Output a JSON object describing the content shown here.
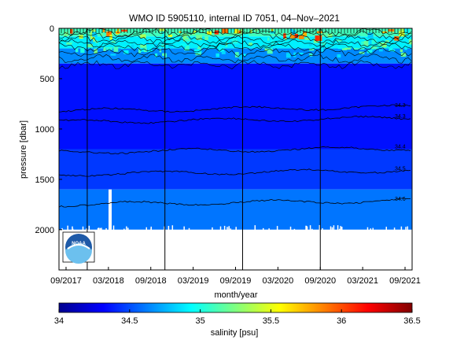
{
  "chart_data": {
    "type": "heatmap",
    "title": "WMO ID 5905110, internal ID 7051, 04–Nov–2021",
    "xlabel": "month/year",
    "ylabel": "pressure [dbar]",
    "x_tick_labels": [
      "09/2017",
      "03/2018",
      "09/2018",
      "03/2019",
      "09/2019",
      "03/2020",
      "09/2020",
      "03/2021",
      "09/2021"
    ],
    "x_range": [
      "2017-08",
      "2021-10"
    ],
    "y_ticks": [
      0,
      500,
      1000,
      1500,
      2000
    ],
    "y_tick_labels": [
      "0",
      "500",
      "1000",
      "1500",
      "2000"
    ],
    "ylim": [
      0,
      2400
    ],
    "y_reversed": true,
    "vertical_markers": [
      "2017-12",
      "2018-11",
      "2019-10",
      "2020-09"
    ],
    "colorbar": {
      "label": "salinity [psu]",
      "range": [
        34,
        36.5
      ],
      "ticks": [
        34,
        34.5,
        35,
        35.5,
        36,
        36.5
      ],
      "tick_labels": [
        "34",
        "34.5",
        "35",
        "35.5",
        "36",
        "36.5"
      ],
      "colormap": "jet"
    },
    "profile_bottom_dbar": 2000,
    "salinity_bands": [
      {
        "top_dbar": 0,
        "bottom_dbar": 80,
        "salinity": 35.1
      },
      {
        "top_dbar": 80,
        "bottom_dbar": 200,
        "salinity": 34.9
      },
      {
        "top_dbar": 200,
        "bottom_dbar": 350,
        "salinity": 34.65
      },
      {
        "top_dbar": 350,
        "bottom_dbar": 1200,
        "salinity": 34.35
      },
      {
        "top_dbar": 1200,
        "bottom_dbar": 1600,
        "salinity": 34.45
      },
      {
        "top_dbar": 1600,
        "bottom_dbar": 2000,
        "salinity": 34.6
      }
    ],
    "contour_levels": [
      {
        "label": "34.3",
        "pressure_dbar": 820
      },
      {
        "label": "34.3",
        "pressure_dbar": 930
      },
      {
        "label": "34.4",
        "pressure_dbar": 1230
      },
      {
        "label": "34.5",
        "pressure_dbar": 1450
      },
      {
        "label": "34.6",
        "pressure_dbar": 1750
      }
    ],
    "grid": false,
    "logo": "NOAA"
  }
}
